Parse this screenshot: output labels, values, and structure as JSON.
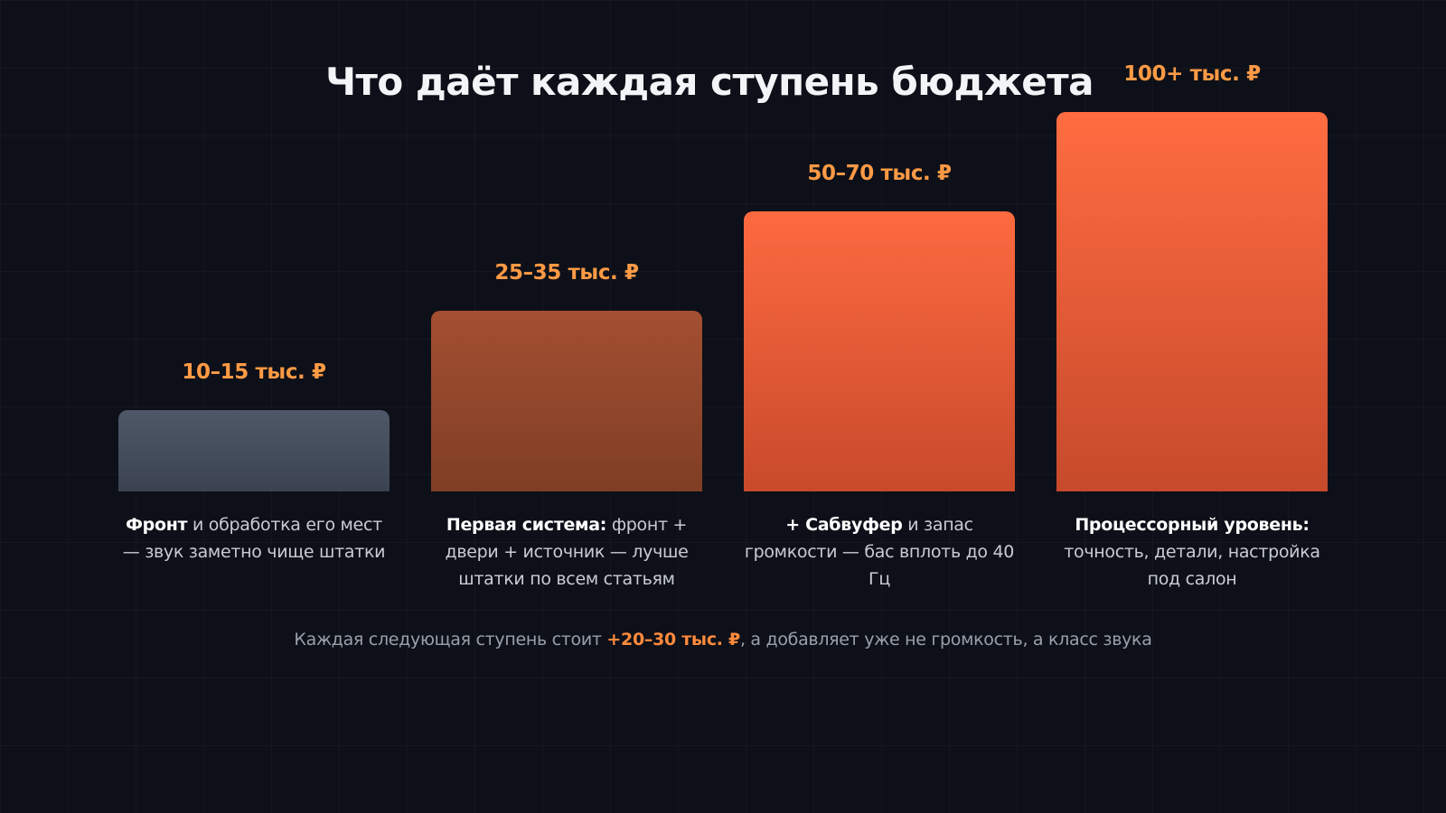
{
  "title": "Что даёт каждая ступень бюджета",
  "chart_data": {
    "type": "bar",
    "title": "Что даёт каждая ступень бюджета",
    "categories": [
      "10–15 тыс. ₽",
      "25–35 тыс. ₽",
      "50–70 тыс. ₽",
      "100+ тыс. ₽"
    ],
    "values": [
      1,
      2,
      3,
      4
    ],
    "descriptions": [
      {
        "bold": "Фронт",
        "text": " и обработка его мест — звук заметно чище штатки"
      },
      {
        "bold": "Первая система:",
        "text": " фронт + двери + источник — лучше штатки по всем статьям"
      },
      {
        "bold": "+ Сабвуфер",
        "text": " и запас громкости — бас вплоть до 40 Гц"
      },
      {
        "bold": "Процессорный уровень:",
        "text": " точность, детали, настройка под салон"
      }
    ],
    "colors": [
      "#4a5262",
      "#9a4a2f",
      "#f4633a",
      "#f6653b"
    ],
    "xlabel": "",
    "ylabel": "",
    "grid": false,
    "legend": "none"
  },
  "footnote": {
    "prefix": "Каждая следующая ступень стоит ",
    "highlight": "+20–30 тыс. ₽",
    "suffix": ", а добавляет уже не громкость, а класс звука"
  }
}
